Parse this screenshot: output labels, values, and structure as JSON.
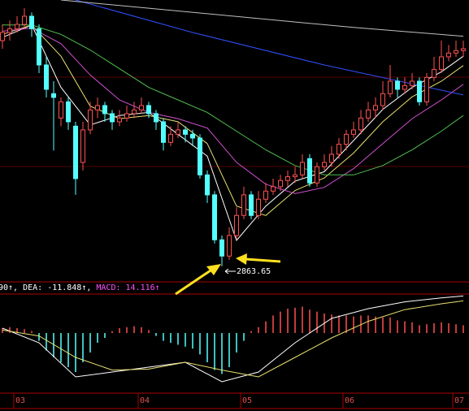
{
  "chart_data": {
    "type": "candlestick",
    "categories": [
      null,
      null,
      "03",
      null,
      null,
      null,
      null,
      null,
      null,
      null,
      null,
      null,
      null,
      null,
      null,
      null,
      null,
      null,
      null,
      "04",
      null,
      null,
      null,
      null,
      null,
      null,
      null,
      null,
      null,
      null,
      null,
      null,
      null,
      "05",
      null,
      null,
      null,
      null,
      null,
      null,
      null,
      null,
      null,
      null,
      null,
      null,
      null,
      "06",
      null,
      null,
      null,
      null,
      null,
      null,
      null,
      null,
      null,
      null,
      null,
      null,
      null,
      null,
      "07",
      null
    ],
    "ohlc": [
      [
        3225,
        3251,
        3212,
        3238
      ],
      [
        3238,
        3257,
        3225,
        3244
      ],
      [
        3244,
        3264,
        3238,
        3251
      ],
      [
        3251,
        3277,
        3244,
        3264
      ],
      [
        3264,
        3270,
        3231,
        3244
      ],
      [
        3244,
        3251,
        3173,
        3186
      ],
      [
        3186,
        3199,
        3134,
        3147
      ],
      [
        3140,
        3160,
        3049,
        3134
      ],
      [
        3101,
        3134,
        3088,
        3127
      ],
      [
        3127,
        3134,
        3082,
        3095
      ],
      [
        3088,
        3095,
        2978,
        3004
      ],
      [
        3030,
        3095,
        3017,
        3082
      ],
      [
        3082,
        3127,
        3075,
        3114
      ],
      [
        3114,
        3134,
        3101,
        3121
      ],
      [
        3121,
        3127,
        3095,
        3108
      ],
      [
        3108,
        3114,
        3082,
        3095
      ],
      [
        3095,
        3114,
        3088,
        3101
      ],
      [
        3101,
        3121,
        3095,
        3108
      ],
      [
        3108,
        3127,
        3101,
        3114
      ],
      [
        3114,
        3134,
        3108,
        3121
      ],
      [
        3121,
        3127,
        3101,
        3108
      ],
      [
        3108,
        3114,
        3082,
        3095
      ],
      [
        3095,
        3101,
        3049,
        3062
      ],
      [
        3062,
        3088,
        3056,
        3075
      ],
      [
        3075,
        3095,
        3069,
        3082
      ],
      [
        3082,
        3088,
        3062,
        3075
      ],
      [
        3075,
        3082,
        3056,
        3069
      ],
      [
        3069,
        3075,
        3004,
        3010
      ],
      [
        3010,
        3017,
        2965,
        2978
      ],
      [
        2978,
        2984,
        2900,
        2906
      ],
      [
        2906,
        2913,
        2863.65,
        2880
      ],
      [
        2880,
        2926,
        2874,
        2913
      ],
      [
        2913,
        2958,
        2906,
        2945
      ],
      [
        2945,
        2991,
        2939,
        2978
      ],
      [
        2978,
        2984,
        2939,
        2945
      ],
      [
        2945,
        2984,
        2939,
        2971
      ],
      [
        2971,
        2997,
        2965,
        2984
      ],
      [
        2984,
        3004,
        2978,
        2991
      ],
      [
        2991,
        3010,
        2984,
        3001
      ],
      [
        3001,
        3017,
        2991,
        3007
      ],
      [
        3007,
        3023,
        2997,
        3010
      ],
      [
        3010,
        3043,
        3004,
        3030
      ],
      [
        3036,
        3043,
        2991,
        2997
      ],
      [
        2997,
        3030,
        2991,
        3023
      ],
      [
        3023,
        3043,
        3017,
        3030
      ],
      [
        3030,
        3056,
        3023,
        3043
      ],
      [
        3043,
        3069,
        3036,
        3059
      ],
      [
        3059,
        3082,
        3049,
        3075
      ],
      [
        3075,
        3095,
        3069,
        3082
      ],
      [
        3082,
        3114,
        3075,
        3101
      ],
      [
        3101,
        3127,
        3095,
        3114
      ],
      [
        3114,
        3134,
        3101,
        3121
      ],
      [
        3121,
        3160,
        3114,
        3140
      ],
      [
        3140,
        3186,
        3134,
        3160
      ],
      [
        3160,
        3166,
        3134,
        3147
      ],
      [
        3147,
        3166,
        3140,
        3153
      ],
      [
        3153,
        3173,
        3147,
        3160
      ],
      [
        3160,
        3166,
        3121,
        3127
      ],
      [
        3127,
        3173,
        3121,
        3166
      ],
      [
        3166,
        3199,
        3160,
        3179
      ],
      [
        3179,
        3225,
        3173,
        3199
      ],
      [
        3199,
        3218,
        3192,
        3205
      ],
      [
        3205,
        3225,
        3199,
        3209
      ],
      [
        3209,
        3225,
        3199,
        3212
      ]
    ],
    "up_color": "#ff5050",
    "down_color": "#54ffff",
    "ylim": [
      2840,
      3290
    ],
    "annotation": "2863.65",
    "lines": [
      {
        "color": "#ffffff",
        "x": [
          0,
          4,
          8,
          12,
          16,
          20,
          24,
          28,
          32,
          36,
          40,
          44,
          48,
          52,
          56,
          60,
          63
        ],
        "values": [
          3230,
          3250,
          3150,
          3090,
          3105,
          3110,
          3075,
          3040,
          2905,
          2960,
          3000,
          3015,
          3065,
          3115,
          3150,
          3175,
          3200
        ]
      },
      {
        "color": "#e8e070",
        "x": [
          0,
          4,
          8,
          12,
          16,
          20,
          24,
          28,
          32,
          36,
          40,
          44,
          48,
          52,
          56,
          60,
          63
        ],
        "values": [
          3235,
          3250,
          3200,
          3120,
          3100,
          3105,
          3095,
          3060,
          2960,
          2945,
          2985,
          3005,
          3045,
          3095,
          3135,
          3160,
          3185
        ]
      },
      {
        "color": "#d050d0",
        "x": [
          0,
          4,
          8,
          12,
          16,
          20,
          24,
          28,
          32,
          36,
          40,
          44,
          48,
          52,
          56,
          60,
          63
        ],
        "values": [
          3240,
          3245,
          3220,
          3170,
          3130,
          3110,
          3100,
          3085,
          3030,
          2995,
          2980,
          2990,
          3020,
          3060,
          3100,
          3130,
          3155
        ]
      },
      {
        "color": "#50c050",
        "x": [
          0,
          4,
          8,
          12,
          16,
          20,
          24,
          28,
          32,
          36,
          40,
          44,
          48,
          52,
          56,
          60,
          63
        ],
        "values": [
          3250,
          3250,
          3235,
          3210,
          3180,
          3150,
          3130,
          3110,
          3080,
          3050,
          3025,
          3010,
          3010,
          3025,
          3050,
          3080,
          3105
        ]
      },
      {
        "color": "#3050ff",
        "x": [
          10,
          26,
          44,
          63
        ],
        "values": [
          3290,
          3238,
          3186,
          3138
        ]
      },
      {
        "color": "#c0c0c0",
        "x": [
          8,
          48,
          63
        ],
        "values": [
          3290,
          3246,
          3232
        ]
      }
    ],
    "macd": {
      "labels": [
        {
          "text": "90↑,",
          "color": "#ffffff"
        },
        {
          "text": "DEA: -11.848↑,",
          "color": "#ffffff"
        },
        {
          "text": "MACD: 14.116↑",
          "color": "#ff50ff"
        }
      ],
      "ylim": [
        -60,
        40
      ],
      "histogram": [
        5,
        6,
        5,
        4,
        2,
        -8,
        -18,
        -25,
        -30,
        -35,
        -40,
        -30,
        -20,
        -10,
        -5,
        2,
        5,
        6,
        7,
        6,
        3,
        -3,
        -8,
        -10,
        -12,
        -14,
        -16,
        -22,
        -30,
        -38,
        -42,
        -35,
        -20,
        -8,
        2,
        6,
        12,
        18,
        22,
        25,
        26,
        27,
        24,
        22,
        20,
        19,
        18,
        18,
        17,
        18,
        18,
        17,
        16,
        16,
        13,
        12,
        11,
        8,
        9,
        10,
        11,
        10,
        9,
        8
      ],
      "lines": [
        {
          "color": "#ffffff",
          "x": [
            0,
            5,
            10,
            15,
            20,
            25,
            30,
            35,
            40,
            45,
            50,
            55,
            60,
            63
          ],
          "values": [
            5,
            -10,
            -45,
            -40,
            -35,
            -30,
            -50,
            -40,
            -10,
            15,
            25,
            32,
            36,
            38
          ]
        },
        {
          "color": "#e8e070",
          "x": [
            0,
            5,
            10,
            15,
            20,
            25,
            30,
            35,
            40,
            45,
            50,
            55,
            60,
            63
          ],
          "values": [
            3,
            -3,
            -25,
            -38,
            -37,
            -30,
            -38,
            -45,
            -25,
            -5,
            12,
            24,
            30,
            33
          ]
        }
      ]
    }
  }
}
